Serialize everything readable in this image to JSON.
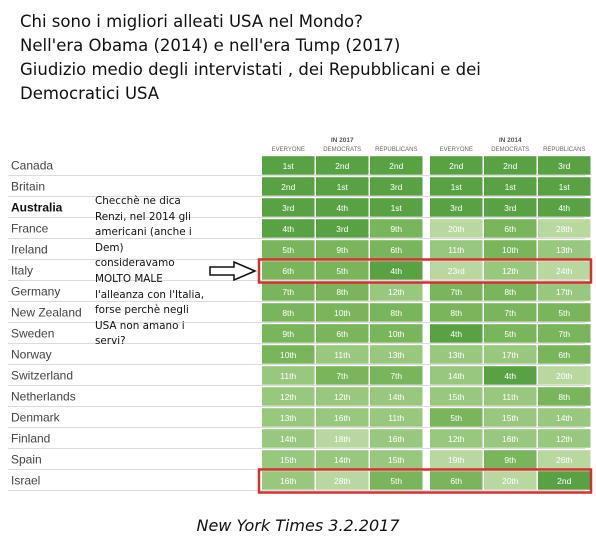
{
  "header": {
    "lines": [
      "Chi sono i migliori alleati USA nel Mondo?",
      "Nell'era Obama (2014) e nell'era Tump (2017)",
      "Giudizio medio degli intervistati , dei Repubblicani e dei",
      "Democratici USA"
    ]
  },
  "annotation": {
    "lines": [
      "Checchè ne dica",
      "Renzi, nel 2014 gli",
      "americani (anche i",
      "Dem)",
      "consideravamo",
      "MOLTO MALE",
      "l'alleanza con l'Italia,",
      "forse perchè negli",
      "USA non amano i",
      "servi?"
    ]
  },
  "source": "New York Times 3.2.2017",
  "chart_data": {
    "type": "table",
    "groups": [
      {
        "title": "IN 2017",
        "columns": [
          "EVERYONE",
          "DEMOCRATS",
          "REPUBLICANS"
        ]
      },
      {
        "title": "IN 2014",
        "columns": [
          "EVERYONE",
          "DEMOCRATS",
          "REPUBLICANS"
        ]
      }
    ],
    "rows": [
      {
        "country": "Canada",
        "bold": false,
        "ranks": [
          1,
          2,
          2,
          2,
          2,
          3
        ]
      },
      {
        "country": "Britain",
        "bold": false,
        "ranks": [
          2,
          1,
          3,
          1,
          1,
          1
        ]
      },
      {
        "country": "Australia",
        "bold": true,
        "ranks": [
          3,
          4,
          1,
          3,
          3,
          4
        ]
      },
      {
        "country": "France",
        "bold": false,
        "ranks": [
          4,
          3,
          9,
          20,
          6,
          28
        ]
      },
      {
        "country": "Ireland",
        "bold": false,
        "ranks": [
          5,
          9,
          6,
          11,
          10,
          13
        ]
      },
      {
        "country": "Italy",
        "bold": false,
        "ranks": [
          6,
          5,
          4,
          23,
          12,
          24
        ]
      },
      {
        "country": "Germany",
        "bold": false,
        "ranks": [
          7,
          8,
          12,
          7,
          8,
          17
        ]
      },
      {
        "country": "New Zealand",
        "bold": false,
        "ranks": [
          8,
          10,
          8,
          8,
          7,
          5
        ]
      },
      {
        "country": "Sweden",
        "bold": false,
        "ranks": [
          9,
          6,
          10,
          4,
          5,
          7
        ]
      },
      {
        "country": "Norway",
        "bold": false,
        "ranks": [
          10,
          11,
          13,
          13,
          17,
          6
        ]
      },
      {
        "country": "Switzerland",
        "bold": false,
        "ranks": [
          11,
          7,
          7,
          14,
          4,
          20
        ]
      },
      {
        "country": "Netherlands",
        "bold": false,
        "ranks": [
          12,
          12,
          14,
          15,
          11,
          8
        ]
      },
      {
        "country": "Denmark",
        "bold": false,
        "ranks": [
          13,
          16,
          11,
          5,
          15,
          14
        ]
      },
      {
        "country": "Finland",
        "bold": false,
        "ranks": [
          14,
          18,
          16,
          12,
          16,
          12
        ]
      },
      {
        "country": "Spain",
        "bold": false,
        "ranks": [
          15,
          14,
          15,
          19,
          9,
          26
        ]
      },
      {
        "country": "Israel",
        "bold": false,
        "ranks": [
          16,
          28,
          5,
          6,
          20,
          2
        ]
      }
    ],
    "highlighted_rows": [
      "Italy",
      "Israel"
    ],
    "colors": {
      "dark": "#58a244",
      "mid": "#78b55b",
      "light": "#98c77e",
      "pale": "#b8d89f",
      "highlight_border": "#d62f2f",
      "label_text": "#444444",
      "row_line": "#dcdcdc"
    }
  }
}
